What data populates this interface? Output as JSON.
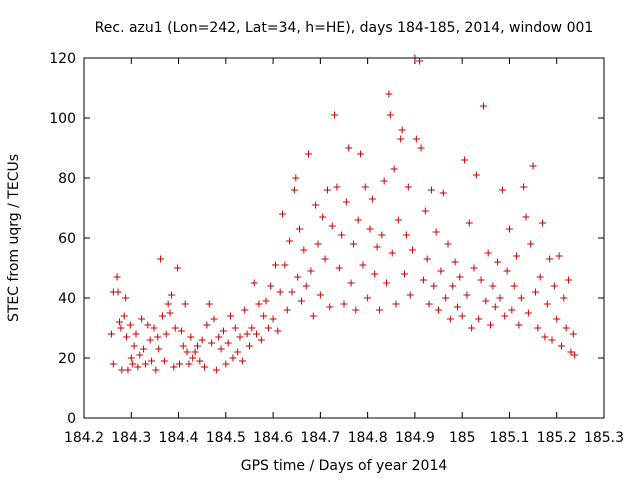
{
  "chart_data": {
    "type": "scatter",
    "title": "Rec. azu1 (Lon=242, Lat=34, h=HE), days 184-185, 2014, window 001",
    "xlabel": "GPS time / Days of year 2014",
    "ylabel": "STEC from uqrg / TECUs",
    "xlim": [
      184.2,
      185.3
    ],
    "ylim": [
      0,
      120
    ],
    "x_ticks": [
      184.2,
      184.3,
      184.4,
      184.5,
      184.6,
      184.7,
      184.8,
      184.9,
      185,
      185.1,
      185.2,
      185.3
    ],
    "x_tick_labels": [
      "184.2",
      "184.3",
      "184.4",
      "184.5",
      "184.6",
      "184.7",
      "184.8",
      "184.9",
      "185",
      "185.1",
      "185.2",
      "185.3"
    ],
    "y_ticks": [
      0,
      20,
      40,
      60,
      80,
      100,
      120
    ],
    "y_tick_labels": [
      "0",
      "20",
      "40",
      "60",
      "80",
      "100",
      "120"
    ],
    "grid": false,
    "marker": "+",
    "color": "#cc0000",
    "series": [
      {
        "name": "STEC",
        "points": [
          [
            184.258,
            28
          ],
          [
            184.262,
            18
          ],
          [
            184.262,
            42
          ],
          [
            184.27,
            47
          ],
          [
            184.272,
            42
          ],
          [
            184.275,
            32
          ],
          [
            184.278,
            30
          ],
          [
            184.28,
            16
          ],
          [
            184.285,
            34
          ],
          [
            184.288,
            40
          ],
          [
            184.29,
            27
          ],
          [
            184.293,
            16
          ],
          [
            184.298,
            31
          ],
          [
            184.3,
            20
          ],
          [
            184.303,
            18
          ],
          [
            184.306,
            24
          ],
          [
            184.31,
            28
          ],
          [
            184.314,
            17
          ],
          [
            184.318,
            21
          ],
          [
            184.322,
            33
          ],
          [
            184.326,
            23
          ],
          [
            184.33,
            18
          ],
          [
            184.335,
            31
          ],
          [
            184.34,
            26
          ],
          [
            184.343,
            19
          ],
          [
            184.348,
            30
          ],
          [
            184.352,
            16
          ],
          [
            184.356,
            27
          ],
          [
            184.358,
            23
          ],
          [
            184.362,
            53
          ],
          [
            184.366,
            34
          ],
          [
            184.37,
            19
          ],
          [
            184.374,
            28
          ],
          [
            184.378,
            38
          ],
          [
            184.382,
            35
          ],
          [
            184.385,
            41
          ],
          [
            184.39,
            17
          ],
          [
            184.393,
            30
          ],
          [
            184.398,
            50
          ],
          [
            184.402,
            18
          ],
          [
            184.406,
            29
          ],
          [
            184.41,
            24
          ],
          [
            184.414,
            38
          ],
          [
            184.418,
            22
          ],
          [
            184.422,
            18
          ],
          [
            184.426,
            27
          ],
          [
            184.43,
            20
          ],
          [
            184.435,
            22
          ],
          [
            184.44,
            24
          ],
          [
            184.445,
            19
          ],
          [
            184.45,
            26
          ],
          [
            184.455,
            17
          ],
          [
            184.46,
            31
          ],
          [
            184.465,
            38
          ],
          [
            184.47,
            25
          ],
          [
            184.475,
            33
          ],
          [
            184.48,
            16
          ],
          [
            184.485,
            27
          ],
          [
            184.49,
            23
          ],
          [
            184.495,
            29
          ],
          [
            184.5,
            18
          ],
          [
            184.505,
            25
          ],
          [
            184.51,
            34
          ],
          [
            184.515,
            20
          ],
          [
            184.52,
            30
          ],
          [
            184.525,
            22
          ],
          [
            184.53,
            27
          ],
          [
            184.535,
            19
          ],
          [
            184.54,
            36
          ],
          [
            184.545,
            28
          ],
          [
            184.55,
            24
          ],
          [
            184.555,
            30
          ],
          [
            184.56,
            45
          ],
          [
            184.565,
            28
          ],
          [
            184.57,
            38
          ],
          [
            184.575,
            26
          ],
          [
            184.58,
            34
          ],
          [
            184.585,
            39
          ],
          [
            184.59,
            30
          ],
          [
            184.595,
            44
          ],
          [
            184.6,
            33
          ],
          [
            184.605,
            51
          ],
          [
            184.61,
            29
          ],
          [
            184.615,
            42
          ],
          [
            184.62,
            68
          ],
          [
            184.625,
            51
          ],
          [
            184.63,
            36
          ],
          [
            184.635,
            59
          ],
          [
            184.64,
            42
          ],
          [
            184.645,
            76
          ],
          [
            184.648,
            80
          ],
          [
            184.652,
            47
          ],
          [
            184.656,
            63
          ],
          [
            184.66,
            39
          ],
          [
            184.665,
            56
          ],
          [
            184.67,
            44
          ],
          [
            184.675,
            88
          ],
          [
            184.68,
            49
          ],
          [
            184.685,
            34
          ],
          [
            184.69,
            71
          ],
          [
            184.695,
            58
          ],
          [
            184.7,
            41
          ],
          [
            184.705,
            67
          ],
          [
            184.71,
            53
          ],
          [
            184.715,
            76
          ],
          [
            184.72,
            37
          ],
          [
            184.725,
            64
          ],
          [
            184.73,
            101
          ],
          [
            184.735,
            77
          ],
          [
            184.74,
            50
          ],
          [
            184.745,
            61
          ],
          [
            184.75,
            38
          ],
          [
            184.755,
            72
          ],
          [
            184.76,
            90
          ],
          [
            184.765,
            45
          ],
          [
            184.77,
            58
          ],
          [
            184.775,
            36
          ],
          [
            184.78,
            66
          ],
          [
            184.785,
            88
          ],
          [
            184.79,
            51
          ],
          [
            184.795,
            77
          ],
          [
            184.8,
            40
          ],
          [
            184.805,
            63
          ],
          [
            184.81,
            73
          ],
          [
            184.815,
            48
          ],
          [
            184.82,
            57
          ],
          [
            184.825,
            36
          ],
          [
            184.83,
            61
          ],
          [
            184.835,
            79
          ],
          [
            184.84,
            45
          ],
          [
            184.845,
            108
          ],
          [
            184.848,
            101
          ],
          [
            184.852,
            55
          ],
          [
            184.856,
            83
          ],
          [
            184.86,
            38
          ],
          [
            184.865,
            66
          ],
          [
            184.87,
            93
          ],
          [
            184.873,
            96
          ],
          [
            184.878,
            48
          ],
          [
            184.882,
            61
          ],
          [
            184.886,
            77
          ],
          [
            184.89,
            41
          ],
          [
            184.895,
            56
          ],
          [
            184.9,
            120
          ],
          [
            184.903,
            93
          ],
          [
            184.91,
            119
          ],
          [
            184.913,
            90
          ],
          [
            184.918,
            46
          ],
          [
            184.922,
            69
          ],
          [
            184.926,
            53
          ],
          [
            184.93,
            38
          ],
          [
            184.935,
            76
          ],
          [
            184.94,
            44
          ],
          [
            184.945,
            62
          ],
          [
            184.95,
            36
          ],
          [
            184.955,
            49
          ],
          [
            184.96,
            75
          ],
          [
            184.965,
            40
          ],
          [
            184.97,
            58
          ],
          [
            184.975,
            33
          ],
          [
            184.98,
            44
          ],
          [
            184.985,
            52
          ],
          [
            184.99,
            37
          ],
          [
            184.995,
            47
          ],
          [
            185.0,
            34
          ],
          [
            185.005,
            86
          ],
          [
            185.01,
            41
          ],
          [
            185.015,
            65
          ],
          [
            185.02,
            30
          ],
          [
            185.025,
            50
          ],
          [
            185.03,
            81
          ],
          [
            185.035,
            33
          ],
          [
            185.04,
            46
          ],
          [
            185.045,
            104
          ],
          [
            185.05,
            39
          ],
          [
            185.055,
            55
          ],
          [
            185.06,
            31
          ],
          [
            185.065,
            44
          ],
          [
            185.07,
            37
          ],
          [
            185.075,
            52
          ],
          [
            185.08,
            40
          ],
          [
            185.085,
            76
          ],
          [
            185.09,
            34
          ],
          [
            185.095,
            49
          ],
          [
            185.1,
            63
          ],
          [
            185.105,
            36
          ],
          [
            185.11,
            44
          ],
          [
            185.115,
            54
          ],
          [
            185.12,
            31
          ],
          [
            185.125,
            40
          ],
          [
            185.13,
            77
          ],
          [
            185.135,
            67
          ],
          [
            185.14,
            35
          ],
          [
            185.145,
            58
          ],
          [
            185.15,
            84
          ],
          [
            185.155,
            42
          ],
          [
            185.16,
            30
          ],
          [
            185.165,
            47
          ],
          [
            185.17,
            65
          ],
          [
            185.175,
            27
          ],
          [
            185.18,
            38
          ],
          [
            185.185,
            53
          ],
          [
            185.19,
            26
          ],
          [
            185.195,
            44
          ],
          [
            185.2,
            33
          ],
          [
            185.205,
            54
          ],
          [
            185.21,
            24
          ],
          [
            185.215,
            40
          ],
          [
            185.22,
            30
          ],
          [
            185.225,
            46
          ],
          [
            185.23,
            22
          ],
          [
            185.235,
            28
          ],
          [
            185.238,
            21
          ]
        ]
      }
    ]
  }
}
